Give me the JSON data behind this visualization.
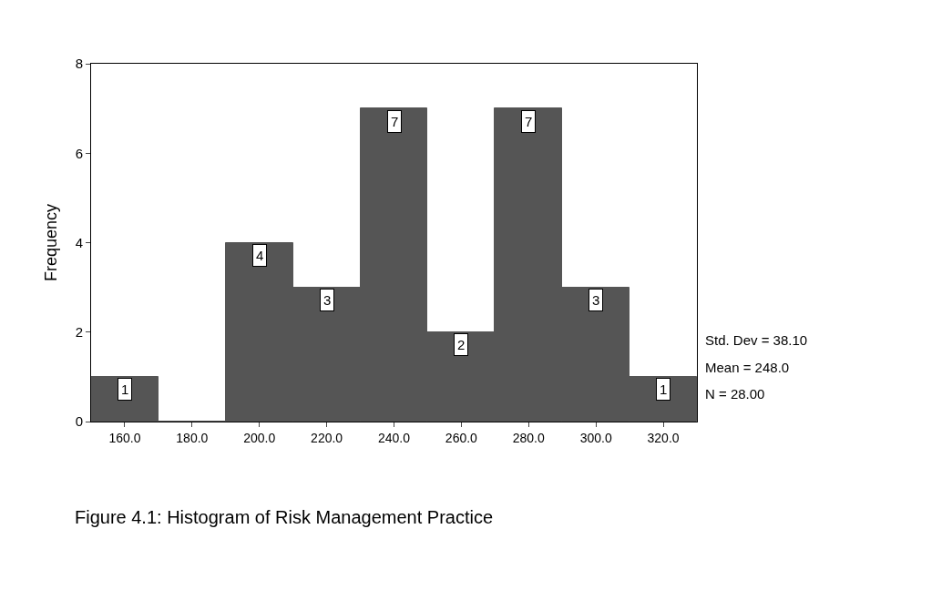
{
  "chart_data": {
    "type": "histogram",
    "ylabel": "Frequency",
    "bins": [
      150,
      170,
      190,
      210,
      230,
      250,
      270,
      290,
      310,
      330
    ],
    "values": [
      1,
      0,
      4,
      3,
      7,
      2,
      7,
      3,
      1
    ],
    "value_labels": [
      "1",
      null,
      "4",
      "3",
      "7",
      "2",
      "7",
      "3",
      "1"
    ],
    "color": "#555555",
    "xlim": [
      150,
      330
    ],
    "xticks": [
      {
        "value": 160,
        "label": "160.0"
      },
      {
        "value": 180,
        "label": "180.0"
      },
      {
        "value": 200,
        "label": "200.0"
      },
      {
        "value": 220,
        "label": "220.0"
      },
      {
        "value": 240,
        "label": "240.0"
      },
      {
        "value": 260,
        "label": "260.0"
      },
      {
        "value": 280,
        "label": "280.0"
      },
      {
        "value": 300,
        "label": "300.0"
      },
      {
        "value": 320,
        "label": "320.0"
      }
    ],
    "ylim": [
      0,
      8
    ],
    "yticks": [
      0,
      2,
      4,
      6,
      8
    ],
    "annotations": [
      "Std. Dev = 38.10",
      "Mean = 248.0",
      "N = 28.00",
      "Figure 4.1: Histogram of Risk Management Practice"
    ]
  }
}
